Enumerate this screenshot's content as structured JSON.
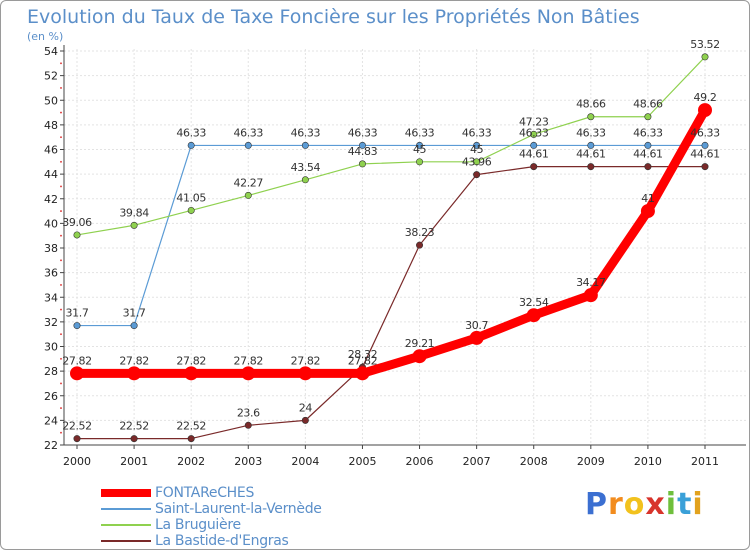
{
  "chart_data": {
    "type": "line",
    "title": "Evolution du Taux de Taxe Foncière sur les Propriétés Non Bâties",
    "ylabel": "(en %)",
    "xlabel": "",
    "categories": [
      "2000",
      "2001",
      "2002",
      "2003",
      "2004",
      "2005",
      "2006",
      "2007",
      "2008",
      "2009",
      "2010",
      "2011"
    ],
    "ylim": [
      22,
      54
    ],
    "yticks": [
      "22",
      "24",
      "26",
      "28",
      "30",
      "32",
      "34",
      "36",
      "38",
      "40",
      "42",
      "44",
      "46",
      "48",
      "50",
      "52",
      "54"
    ],
    "grid": true,
    "series": [
      {
        "name": "FONTAReCHES",
        "color": "#ff0000",
        "values": [
          27.82,
          27.82,
          27.82,
          27.82,
          27.82,
          27.82,
          29.21,
          30.7,
          32.54,
          34.17,
          41,
          49.2
        ],
        "labels": [
          "27.82",
          "27.82",
          "27.82",
          "27.82",
          "27.82",
          "27.82",
          "29.21",
          "30.7",
          "32.54",
          "34.17",
          "41",
          "49.2"
        ]
      },
      {
        "name": "Saint-Laurent-la-Vernède",
        "color": "#5b9bd5",
        "values": [
          31.7,
          31.7,
          46.33,
          46.33,
          46.33,
          46.33,
          46.33,
          46.33,
          46.33,
          46.33,
          46.33,
          46.33
        ],
        "labels": [
          "31.7",
          "31.7",
          "46.33",
          "46.33",
          "46.33",
          "46.33",
          "46.33",
          "46.33",
          "46.33",
          "46.33",
          "46.33",
          "46.33"
        ]
      },
      {
        "name": "La Bruguière",
        "color": "#8fd14f",
        "values": [
          39.06,
          39.84,
          41.05,
          42.27,
          43.54,
          44.83,
          45,
          45,
          47.23,
          48.66,
          48.66,
          53.52
        ],
        "labels": [
          "39.06",
          "39.84",
          "41.05",
          "42.27",
          "43.54",
          "44.83",
          "45",
          "45",
          "47.23",
          "48.66",
          "48.66",
          "53.52"
        ]
      },
      {
        "name": "La Bastide-d'Engras",
        "color": "#7a2a2a",
        "values": [
          22.52,
          22.52,
          22.52,
          23.6,
          24,
          28.32,
          38.23,
          43.96,
          44.61,
          44.61,
          44.61,
          44.61
        ],
        "labels": [
          "22.52",
          "22.52",
          "22.52",
          "23.6",
          "24",
          "28.32",
          "38.23",
          "43.96",
          "44.61",
          "44.61",
          "44.61",
          "44.61"
        ]
      }
    ]
  },
  "brand": {
    "letters": [
      "P",
      "r",
      "o",
      "x",
      "i",
      "t",
      "i"
    ],
    "colors": [
      "#3b6fd1",
      "#f28c1e",
      "#f2c21e",
      "#d8342c",
      "#6fbf3c",
      "#3aa0d8",
      "#e2a21e"
    ]
  }
}
